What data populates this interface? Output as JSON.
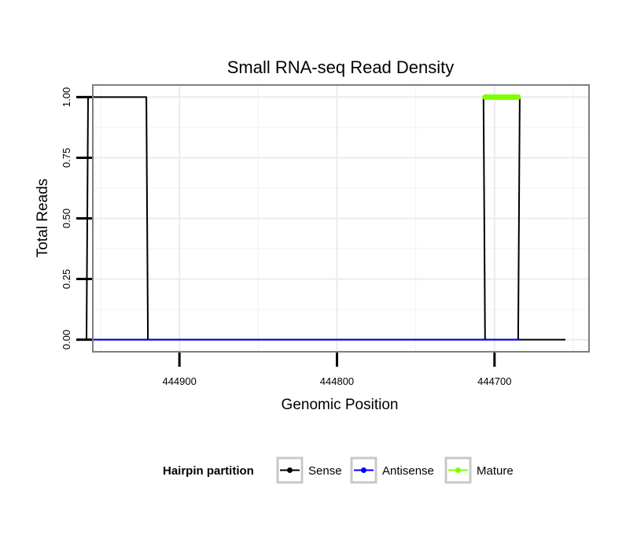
{
  "chart_data": {
    "type": "line",
    "title": "Small RNA-seq Read Density",
    "xlabel": "Genomic Position",
    "ylabel": "Total Reads",
    "x_reversed": true,
    "xlim": [
      444955,
      444640
    ],
    "ylim": [
      -0.05,
      1.05
    ],
    "x_ticks": [
      444900,
      444800,
      444700
    ],
    "x_tick_labels": [
      "444900",
      "444800",
      444700
    ],
    "y_ticks": [
      0,
      0.25,
      0.5,
      0.75,
      1
    ],
    "y_tick_labels": [
      "0.00",
      "0.25",
      "0.50",
      "0.75",
      "1.00"
    ],
    "grid": true,
    "legend_title": "Hairpin partition",
    "legend_position": "bottom",
    "colors": {
      "sense": "#000000",
      "antisense": "#0000ff",
      "mature": "#7fff00"
    },
    "series": [
      {
        "name": "Sense",
        "color": "#000000",
        "x": [
          444908,
          444920,
          444921,
          444958,
          444959,
          444685,
          444684,
          444707,
          444706,
          444655
        ],
        "y": [
          0,
          0,
          1,
          1,
          0,
          0,
          1,
          1,
          0,
          0
        ]
      },
      {
        "name": "Antisense",
        "color": "#0000ff",
        "x": [
          444920,
          444959,
          444684,
          444707
        ],
        "y": [
          0,
          0,
          0,
          0
        ]
      },
      {
        "name": "Mature",
        "color": "#7fff00",
        "x": [
          444685,
          444706
        ],
        "y": [
          1,
          1
        ]
      }
    ]
  }
}
